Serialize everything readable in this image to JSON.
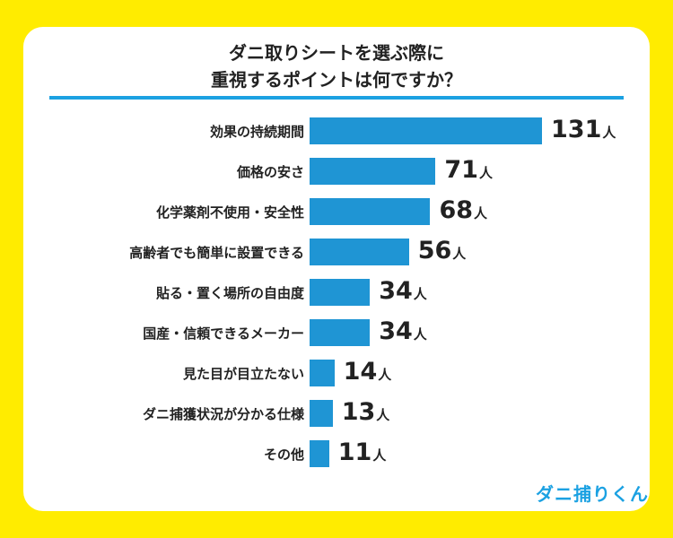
{
  "chart_data": {
    "type": "bar",
    "orientation": "horizontal",
    "title": "ダニ取りシートを選ぶ際に\n重視するポイントは何ですか？",
    "title_lines": [
      "ダニ取りシートを選ぶ際に",
      "重視するポイントは何ですか？"
    ],
    "categories": [
      "効果の持続期間",
      "価格の安さ",
      "化学薬剤不使用・安全性",
      "高齢者でも簡単に設置できる",
      "貼る・置く場所の自由度",
      "国産・信頼できるメーカー",
      "見た目が目立たない",
      "ダニ捕獲状況が分かる仕様",
      "その他"
    ],
    "values": [
      131,
      71,
      68,
      56,
      34,
      34,
      14,
      13,
      11
    ],
    "unit": "人",
    "xlim": [
      0,
      131
    ],
    "grid": false,
    "colors": {
      "bar": "#1f95d4",
      "background": "#ffec00",
      "rule": "#1ba1e2"
    }
  },
  "logo": "ダニ捕りくん"
}
